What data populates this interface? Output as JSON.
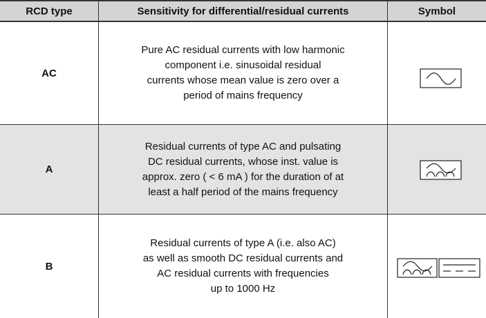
{
  "table": {
    "header": [
      "RCD type",
      "Sensitivity for differential/residual currents",
      "Symbol"
    ],
    "rows": [
      {
        "type": "AC",
        "description": [
          "Pure AC residual currents with low harmonic",
          "component i.e. sinusoidal residual",
          "currents whose mean value is zero over a",
          "period of mains frequency"
        ]
      },
      {
        "type": "A",
        "description": [
          "Residual currents of type AC and pulsating",
          "DC residual currents, whose inst. value is",
          "approx. zero ( < 6 mA ) for the duration of at",
          "least a half period of the mains frequency"
        ]
      },
      {
        "type": "B",
        "description": [
          "Residual currents of type A (i.e. also AC)",
          "as well as smooth DC residual currents and",
          "AC residual currents with frequencies",
          "up to 1000 Hz"
        ]
      }
    ]
  }
}
